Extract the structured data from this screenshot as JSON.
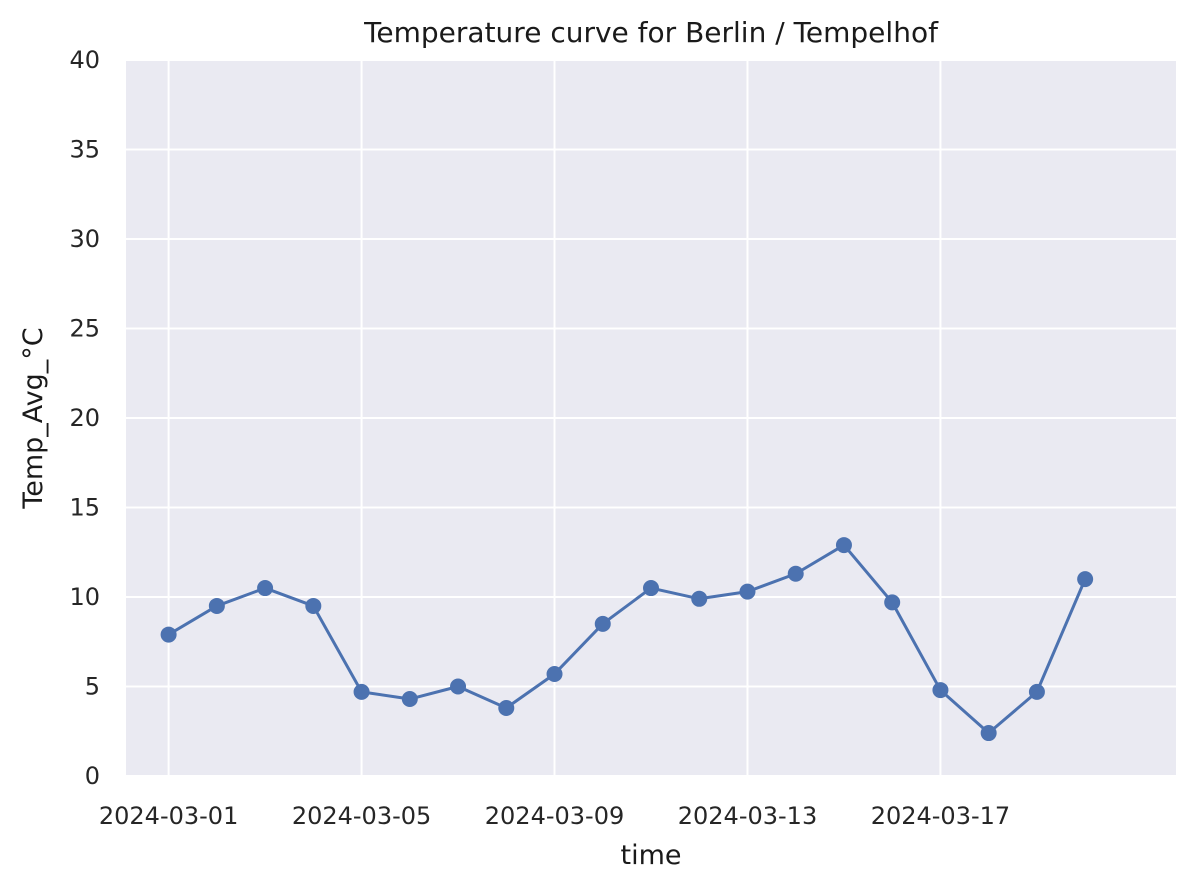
{
  "chart_data": {
    "type": "line",
    "title": "Temperature curve for Berlin / Tempelhof",
    "xlabel": "time",
    "ylabel": "Temp_Avg_°C",
    "ylim": [
      0,
      40
    ],
    "yticks": [
      0,
      5,
      10,
      15,
      20,
      25,
      30,
      35,
      40
    ],
    "xlim": [
      "2024-02-29T02:48",
      "2024-03-21T21:12"
    ],
    "xticks": [
      "2024-03-01",
      "2024-03-05",
      "2024-03-09",
      "2024-03-13",
      "2024-03-17"
    ],
    "grid": true,
    "marker": "circle",
    "line_color": "#4c72b0",
    "background_color": "#eaeaf2",
    "x": [
      "2024-03-01",
      "2024-03-02",
      "2024-03-03",
      "2024-03-04",
      "2024-03-05",
      "2024-03-06",
      "2024-03-07",
      "2024-03-08",
      "2024-03-09",
      "2024-03-10",
      "2024-03-11",
      "2024-03-12",
      "2024-03-13",
      "2024-03-14",
      "2024-03-15",
      "2024-03-16",
      "2024-03-17",
      "2024-03-18",
      "2024-03-19",
      "2024-03-20"
    ],
    "values": [
      7.9,
      9.5,
      10.5,
      9.5,
      4.7,
      4.3,
      5.0,
      3.8,
      5.7,
      8.5,
      10.5,
      9.9,
      10.3,
      11.3,
      12.9,
      9.7,
      4.8,
      2.4,
      4.7,
      11.0
    ]
  }
}
